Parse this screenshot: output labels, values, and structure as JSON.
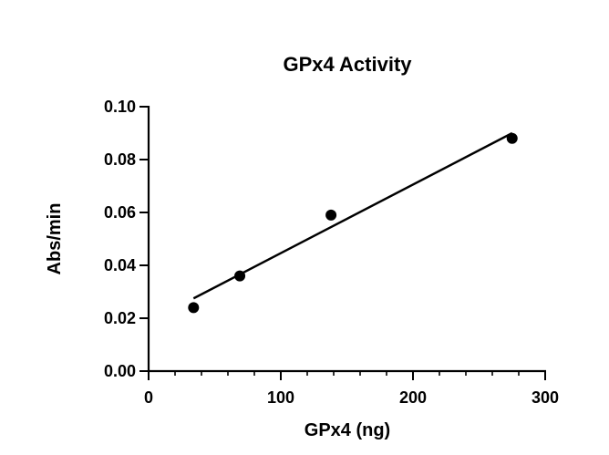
{
  "chart_data": {
    "type": "scatter",
    "title": "GPx4 Activity",
    "xlabel": "GPx4 (ng)",
    "ylabel": "Abs/min",
    "xlim": [
      0,
      300
    ],
    "ylim": [
      0,
      0.1
    ],
    "x_ticks": [
      0,
      100,
      200,
      300
    ],
    "x_tick_labels": [
      "0",
      "100",
      "200",
      "300"
    ],
    "x_minor_step": 20,
    "y_ticks": [
      0,
      0.02,
      0.04,
      0.06,
      0.08,
      0.1
    ],
    "y_tick_labels": [
      "0.00",
      "0.02",
      "0.04",
      "0.06",
      "0.08",
      "0.10"
    ],
    "grid": false,
    "legend": "none",
    "series": [
      {
        "x": [
          34,
          69,
          138,
          275
        ],
        "y": [
          0.024,
          0.036,
          0.059,
          0.088
        ]
      }
    ],
    "fit_line": {
      "x": [
        34,
        275
      ],
      "y": [
        0.0275,
        0.09
      ]
    }
  }
}
